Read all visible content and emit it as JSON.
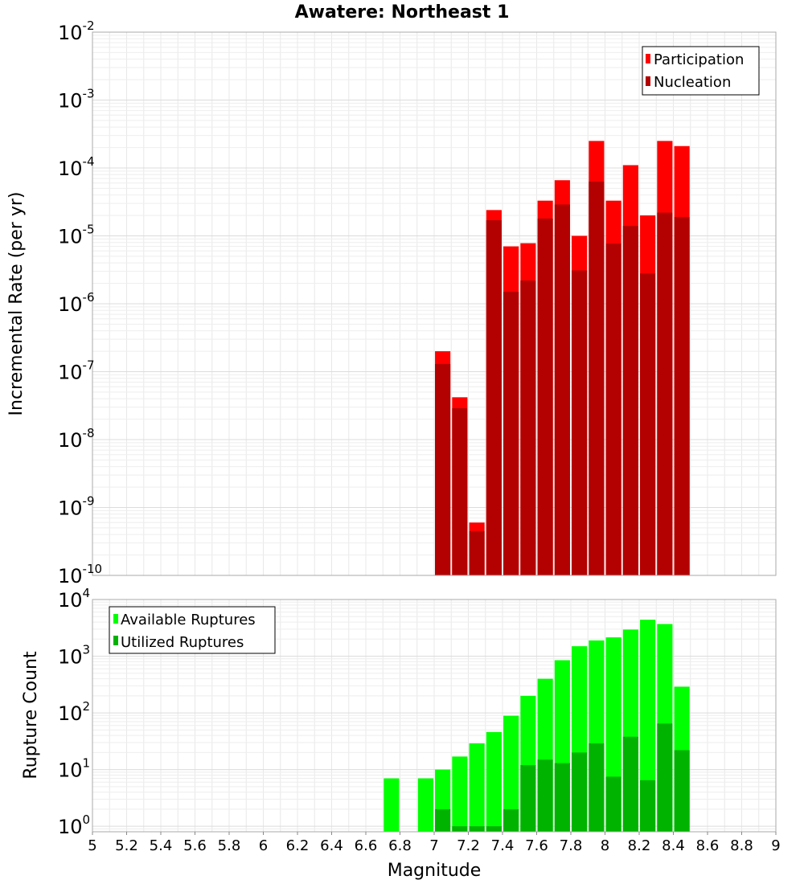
{
  "title": "Awatere: Northeast 1",
  "chart_data": [
    {
      "type": "bar",
      "ylabel": "Incremental Rate (per yr)",
      "yscale": "log",
      "ylim": [
        1e-10,
        0.01
      ],
      "xlim": [
        5,
        9
      ],
      "grid": true,
      "legend_position": "top-right",
      "categories": [
        7.05,
        7.15,
        7.25,
        7.35,
        7.45,
        7.55,
        7.65,
        7.75,
        7.85,
        7.95,
        8.05,
        8.15,
        8.25,
        8.35,
        8.45
      ],
      "series": [
        {
          "name": "Participation",
          "color": "#ff0000",
          "values": [
            2e-07,
            4.2e-08,
            6e-10,
            2.4e-05,
            7e-06,
            7.8e-06,
            3.3e-05,
            6.6e-05,
            1e-05,
            0.00025,
            3.3e-05,
            0.00011,
            2e-05,
            0.00025,
            0.00021
          ]
        },
        {
          "name": "Nucleation",
          "color": "#b30000",
          "values": [
            1.3e-07,
            2.9e-08,
            4.5e-10,
            1.7e-05,
            1.5e-06,
            2.2e-06,
            1.8e-05,
            2.9e-05,
            3.1e-06,
            6.3e-05,
            7.7e-06,
            1.4e-05,
            2.8e-06,
            2.2e-05,
            1.9e-05
          ]
        }
      ]
    },
    {
      "type": "bar",
      "xlabel": "Magnitude",
      "ylabel": "Rupture Count",
      "yscale": "log",
      "ylim": [
        0.8,
        10000.0
      ],
      "xlim": [
        5,
        9
      ],
      "grid": true,
      "legend_position": "top-left",
      "categories": [
        6.75,
        6.95,
        7.05,
        7.15,
        7.25,
        7.35,
        7.45,
        7.55,
        7.65,
        7.75,
        7.85,
        7.95,
        8.05,
        8.15,
        8.25,
        8.35,
        8.45
      ],
      "series": [
        {
          "name": "Available Ruptures",
          "color": "#00ff00",
          "values": [
            7,
            7,
            10,
            17,
            29,
            46,
            89,
            200,
            400,
            850,
            1500,
            1900,
            2150,
            2950,
            4400,
            3700,
            290
          ]
        },
        {
          "name": "Utilized Ruptures",
          "color": "#00b300",
          "values": [
            0,
            0,
            2,
            1,
            1,
            1,
            2,
            12,
            15,
            13,
            20,
            29,
            7.5,
            38,
            6.5,
            65,
            22
          ]
        }
      ]
    }
  ],
  "x_ticks": [
    "5",
    "5.2",
    "5.4",
    "5.6",
    "5.8",
    "6",
    "6.2",
    "6.4",
    "6.6",
    "6.8",
    "7",
    "7.2",
    "7.4",
    "7.6",
    "7.8",
    "8",
    "8.2",
    "8.4",
    "8.6",
    "8.8",
    "9"
  ],
  "top_y_ticks": [
    {
      "base": "10",
      "exp": "-2"
    },
    {
      "base": "10",
      "exp": "-3"
    },
    {
      "base": "10",
      "exp": "-4"
    },
    {
      "base": "10",
      "exp": "-5"
    },
    {
      "base": "10",
      "exp": "-6"
    },
    {
      "base": "10",
      "exp": "-7"
    },
    {
      "base": "10",
      "exp": "-8"
    },
    {
      "base": "10",
      "exp": "-9"
    },
    {
      "base": "10",
      "exp": "-10"
    }
  ],
  "bottom_y_ticks": [
    {
      "base": "10",
      "exp": "4"
    },
    {
      "base": "10",
      "exp": "3"
    },
    {
      "base": "10",
      "exp": "2"
    },
    {
      "base": "10",
      "exp": "1"
    },
    {
      "base": "10",
      "exp": "0"
    }
  ]
}
